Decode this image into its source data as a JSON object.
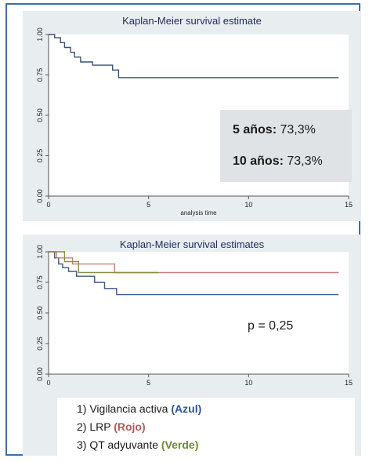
{
  "chart_data": [
    {
      "type": "line",
      "title": "Kaplan-Meier survival estimate",
      "xlabel": "analysis time",
      "ylabel": "",
      "xlim": [
        0,
        15
      ],
      "ylim": [
        0,
        1
      ],
      "x_ticks": [
        "0",
        "5",
        "10",
        "15"
      ],
      "y_ticks": [
        "0.00",
        "0.25",
        "0.50",
        "0.75",
        "1.00"
      ],
      "series": [
        {
          "color": "#3b4f78",
          "points": [
            [
              0,
              1.0
            ],
            [
              0.3,
              1.0
            ],
            [
              0.3,
              0.98
            ],
            [
              0.6,
              0.98
            ],
            [
              0.6,
              0.95
            ],
            [
              0.8,
              0.95
            ],
            [
              0.8,
              0.92
            ],
            [
              1.1,
              0.92
            ],
            [
              1.1,
              0.89
            ],
            [
              1.3,
              0.89
            ],
            [
              1.3,
              0.86
            ],
            [
              1.6,
              0.86
            ],
            [
              1.6,
              0.83
            ],
            [
              2.2,
              0.83
            ],
            [
              2.2,
              0.81
            ],
            [
              3.2,
              0.81
            ],
            [
              3.2,
              0.78
            ],
            [
              3.5,
              0.78
            ],
            [
              3.5,
              0.733
            ],
            [
              14.5,
              0.733
            ]
          ]
        }
      ],
      "info": {
        "row1_label": "5 años:",
        "row1_value": "73,3%",
        "row2_label": "10 años:",
        "row2_value": "73,3%"
      }
    },
    {
      "type": "line",
      "title": "Kaplan-Meier survival estimates",
      "xlabel": "",
      "ylabel": "",
      "xlim": [
        0,
        15
      ],
      "ylim": [
        0,
        1
      ],
      "x_ticks": [
        "0",
        "5",
        "10",
        "15"
      ],
      "y_ticks": [
        "0.00",
        "0.25",
        "0.50",
        "0.75",
        "1.00"
      ],
      "series": [
        {
          "color": "#3b5a85",
          "points": [
            [
              0,
              1.0
            ],
            [
              0.3,
              1.0
            ],
            [
              0.3,
              0.95
            ],
            [
              0.5,
              0.95
            ],
            [
              0.5,
              0.9
            ],
            [
              0.7,
              0.9
            ],
            [
              0.7,
              0.87
            ],
            [
              1.0,
              0.87
            ],
            [
              1.0,
              0.84
            ],
            [
              1.4,
              0.84
            ],
            [
              1.4,
              0.8
            ],
            [
              2.3,
              0.8
            ],
            [
              2.3,
              0.75
            ],
            [
              2.8,
              0.75
            ],
            [
              2.8,
              0.7
            ],
            [
              3.4,
              0.7
            ],
            [
              3.4,
              0.65
            ],
            [
              14.5,
              0.65
            ]
          ]
        },
        {
          "color": "#c77f7f",
          "points": [
            [
              0,
              1.0
            ],
            [
              0.4,
              1.0
            ],
            [
              0.4,
              0.95
            ],
            [
              1.2,
              0.95
            ],
            [
              1.2,
              0.9
            ],
            [
              3.3,
              0.9
            ],
            [
              3.3,
              0.83
            ],
            [
              14.5,
              0.83
            ]
          ]
        },
        {
          "color": "#8a8e3c",
          "points": [
            [
              0,
              1.0
            ],
            [
              0.8,
              1.0
            ],
            [
              0.8,
              0.92
            ],
            [
              1.5,
              0.92
            ],
            [
              1.5,
              0.83
            ],
            [
              5.5,
              0.83
            ]
          ]
        }
      ],
      "pvalue": "p = 0,25",
      "legend": [
        {
          "prefix": "1) Vigilancia activa ",
          "color_label": "(Azul)",
          "color": "#2f5597"
        },
        {
          "prefix": "2) LRP ",
          "color_label": "(Rojo)",
          "color": "#b05a5a"
        },
        {
          "prefix": "3) QT adyuvante ",
          "color_label": "(Verde)",
          "color": "#6e8a2e"
        }
      ]
    }
  ]
}
